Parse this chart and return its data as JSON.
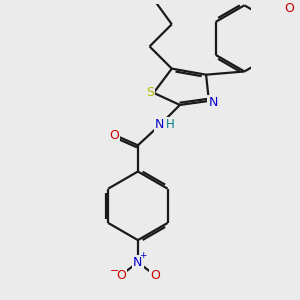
{
  "bg_color": "#ebebeb",
  "bond_color": "#1a1a1a",
  "bond_width": 1.6,
  "dbo": 0.055,
  "atom_colors": {
    "S": "#b8b800",
    "N": "#0000cc",
    "O": "#cc0000",
    "H": "#008080",
    "C": "#1a1a1a"
  }
}
